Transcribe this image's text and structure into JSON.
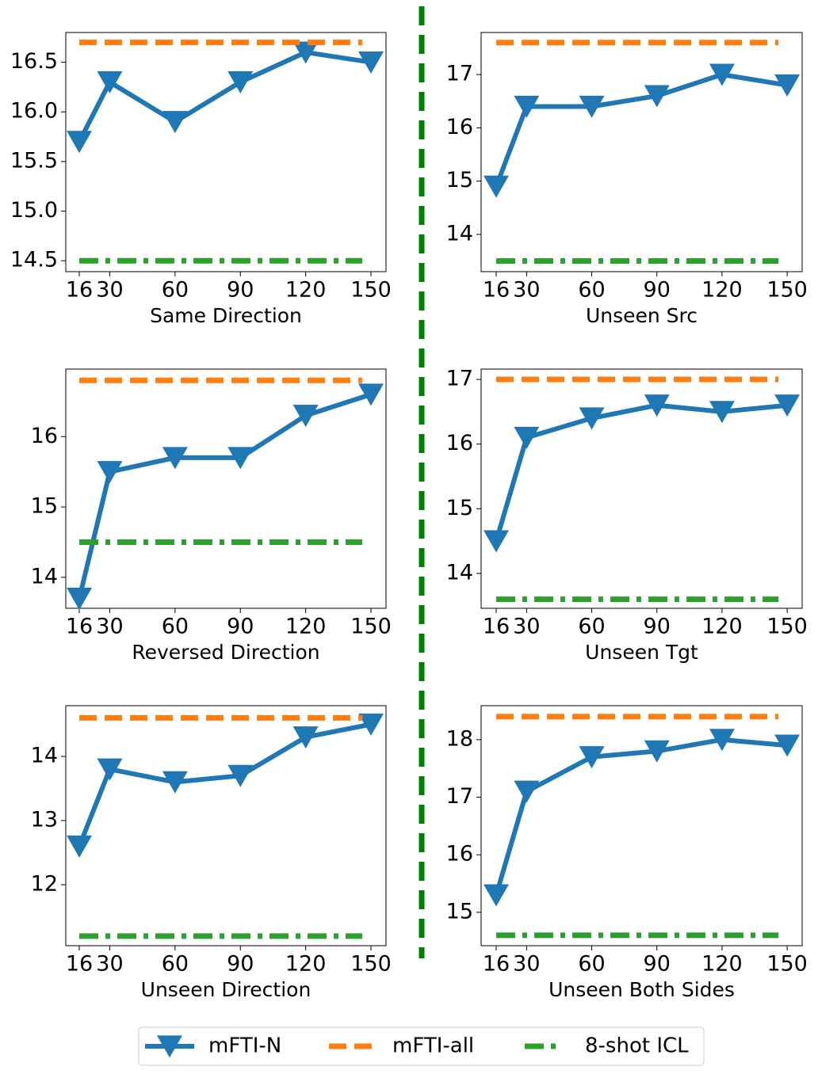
{
  "chart_data": [
    {
      "type": "line",
      "xlabel": "Same Direction",
      "xlim": [
        9.8,
        156.9
      ],
      "xticks": [
        16,
        30,
        60,
        90,
        120,
        150
      ],
      "ylim": [
        14.39,
        16.8
      ],
      "yticks": [
        14.5,
        {
          "value": 15,
          "label": "15.0"
        },
        15.5,
        {
          "value": 16,
          "label": "16.0"
        },
        16.5
      ],
      "series": [
        {
          "name": "mFTI-N",
          "color": "#1f77b4",
          "linestyle": "solid",
          "marker": "v",
          "x": [
            16,
            30,
            60,
            90,
            120,
            150
          ],
          "values": [
            15.7,
            16.3,
            15.9,
            16.3,
            16.6,
            16.5
          ]
        },
        {
          "name": "mFTI-all",
          "color": "#ff7f0e",
          "linestyle": "dashed",
          "x": [
            16,
            146
          ],
          "values": [
            16.7,
            16.7
          ]
        },
        {
          "name": "8-shot ICL",
          "color": "#2ca02c",
          "linestyle": "dashdot",
          "x": [
            16,
            146
          ],
          "values": [
            14.5,
            14.5
          ]
        }
      ]
    },
    {
      "type": "line",
      "xlabel": "Unseen Src",
      "xlim": [
        9.06,
        156.9
      ],
      "xticks": [
        16,
        30,
        60,
        90,
        120,
        150
      ],
      "ylim": [
        13.3,
        17.79
      ],
      "yticks": [
        14,
        15,
        16,
        17
      ],
      "series": [
        {
          "name": "mFTI-N",
          "color": "#1f77b4",
          "linestyle": "solid",
          "marker": "v",
          "x": [
            16,
            30,
            60,
            90,
            120,
            150
          ],
          "values": [
            14.9,
            16.4,
            16.4,
            16.6,
            17.0,
            16.8
          ]
        },
        {
          "name": "mFTI-all",
          "color": "#ff7f0e",
          "linestyle": "dashed",
          "x": [
            16,
            146
          ],
          "values": [
            17.6,
            17.6
          ]
        },
        {
          "name": "8-shot ICL",
          "color": "#2ca02c",
          "linestyle": "dashdot",
          "x": [
            16,
            146
          ],
          "values": [
            13.5,
            13.5
          ]
        }
      ]
    },
    {
      "type": "line",
      "xlabel": "Reversed Direction",
      "xlim": [
        9.8,
        156.9
      ],
      "xticks": [
        16,
        30,
        60,
        90,
        120,
        150
      ],
      "ylim": [
        13.56,
        16.96
      ],
      "yticks": [
        14,
        15,
        16
      ],
      "series": [
        {
          "name": "mFTI-N",
          "color": "#1f77b4",
          "linestyle": "solid",
          "marker": "v",
          "x": [
            16,
            30,
            60,
            90,
            120,
            150
          ],
          "values": [
            13.7,
            15.5,
            15.7,
            15.7,
            16.3,
            16.6
          ]
        },
        {
          "name": "mFTI-all",
          "color": "#ff7f0e",
          "linestyle": "dashed",
          "x": [
            16,
            146
          ],
          "values": [
            16.8,
            16.8
          ]
        },
        {
          "name": "8-shot ICL",
          "color": "#2ca02c",
          "linestyle": "dashdot",
          "x": [
            16,
            146
          ],
          "values": [
            14.5,
            14.5
          ]
        }
      ]
    },
    {
      "type": "line",
      "xlabel": "Unseen Tgt",
      "xlim": [
        9.06,
        156.9
      ],
      "xticks": [
        16,
        30,
        60,
        90,
        120,
        150
      ],
      "ylim": [
        13.46,
        17.16
      ],
      "yticks": [
        14,
        15,
        16,
        17
      ],
      "series": [
        {
          "name": "mFTI-N",
          "color": "#1f77b4",
          "linestyle": "solid",
          "marker": "v",
          "x": [
            16,
            30,
            60,
            90,
            120,
            150
          ],
          "values": [
            14.5,
            16.1,
            16.4,
            16.6,
            16.5,
            16.6
          ]
        },
        {
          "name": "mFTI-all",
          "color": "#ff7f0e",
          "linestyle": "dashed",
          "x": [
            16,
            146
          ],
          "values": [
            17.0,
            17.0
          ]
        },
        {
          "name": "8-shot ICL",
          "color": "#2ca02c",
          "linestyle": "dashdot",
          "x": [
            16,
            146
          ],
          "values": [
            13.6,
            13.6
          ]
        }
      ]
    },
    {
      "type": "line",
      "xlabel": "Unseen Direction",
      "xlim": [
        9.8,
        156.9
      ],
      "xticks": [
        16,
        30,
        60,
        90,
        120,
        150
      ],
      "ylim": [
        11.05,
        14.79
      ],
      "yticks": [
        12,
        13,
        14
      ],
      "series": [
        {
          "name": "mFTI-N",
          "color": "#1f77b4",
          "linestyle": "solid",
          "marker": "v",
          "x": [
            16,
            30,
            60,
            90,
            120,
            150
          ],
          "values": [
            12.6,
            13.8,
            13.6,
            13.7,
            14.3,
            14.5
          ]
        },
        {
          "name": "mFTI-all",
          "color": "#ff7f0e",
          "linestyle": "dashed",
          "x": [
            16,
            146
          ],
          "values": [
            14.6,
            14.6
          ]
        },
        {
          "name": "8-shot ICL",
          "color": "#2ca02c",
          "linestyle": "dashdot",
          "x": [
            16,
            146
          ],
          "values": [
            11.2,
            11.2
          ]
        }
      ]
    },
    {
      "type": "line",
      "xlabel": "Unseen Both Sides",
      "xlim": [
        9.06,
        156.9
      ],
      "xticks": [
        16,
        30,
        60,
        90,
        120,
        150
      ],
      "ylim": [
        14.42,
        18.59
      ],
      "yticks": [
        15,
        16,
        17,
        18
      ],
      "series": [
        {
          "name": "mFTI-N",
          "color": "#1f77b4",
          "linestyle": "solid",
          "marker": "v",
          "x": [
            16,
            30,
            60,
            90,
            120,
            150
          ],
          "values": [
            15.3,
            17.1,
            17.7,
            17.8,
            18.0,
            17.9
          ]
        },
        {
          "name": "mFTI-all",
          "color": "#ff7f0e",
          "linestyle": "dashed",
          "x": [
            16,
            146
          ],
          "values": [
            18.4,
            18.4
          ]
        },
        {
          "name": "8-shot ICL",
          "color": "#2ca02c",
          "linestyle": "dashdot",
          "x": [
            16,
            146
          ],
          "values": [
            14.6,
            14.6
          ]
        }
      ]
    }
  ]
}
